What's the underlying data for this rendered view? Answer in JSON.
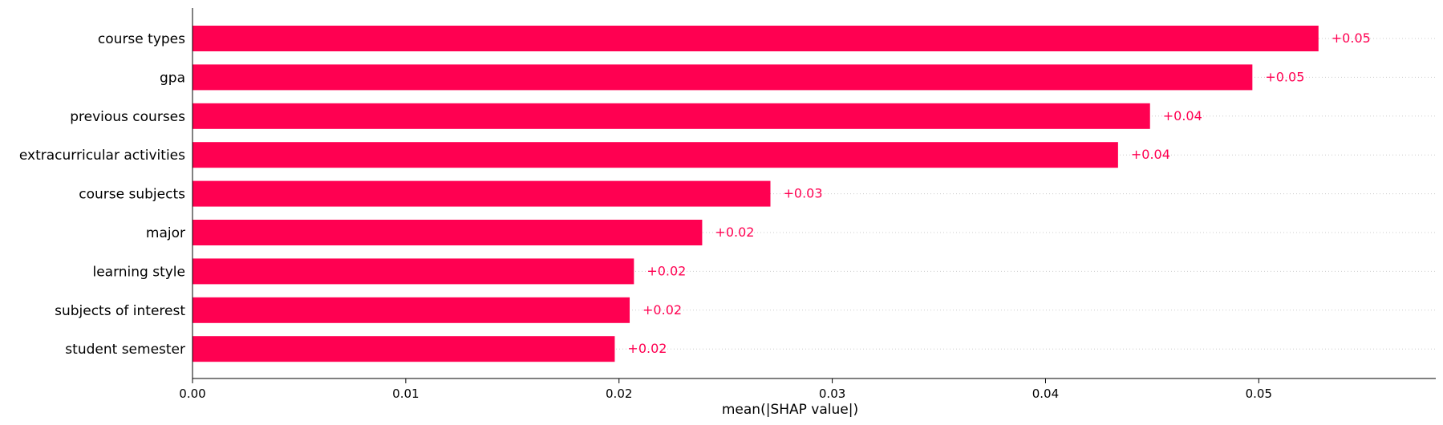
{
  "chart_data": {
    "type": "bar",
    "orientation": "horizontal",
    "categories": [
      "course types",
      "gpa",
      "previous courses",
      "extracurricular activities",
      "course subjects",
      "major",
      "learning style",
      "subjects of interest",
      "student semester"
    ],
    "values": [
      0.0528,
      0.0497,
      0.0449,
      0.0434,
      0.0271,
      0.0239,
      0.0207,
      0.0205,
      0.0198
    ],
    "data_labels": [
      "+0.05",
      "+0.05",
      "+0.04",
      "+0.04",
      "+0.03",
      "+0.02",
      "+0.02",
      "+0.02",
      "+0.02"
    ],
    "xlabel": "mean(|SHAP value|)",
    "ylabel": "",
    "xlim": [
      0,
      0.0583
    ],
    "xticks": [
      0.0,
      0.01,
      0.02,
      0.03,
      0.04,
      0.05
    ],
    "xtick_labels": [
      "0.00",
      "0.01",
      "0.02",
      "0.03",
      "0.04",
      "0.05"
    ],
    "bar_color": "#ff0051",
    "label_color": "#ff0051",
    "grid": "dotted horizontal row guides"
  }
}
